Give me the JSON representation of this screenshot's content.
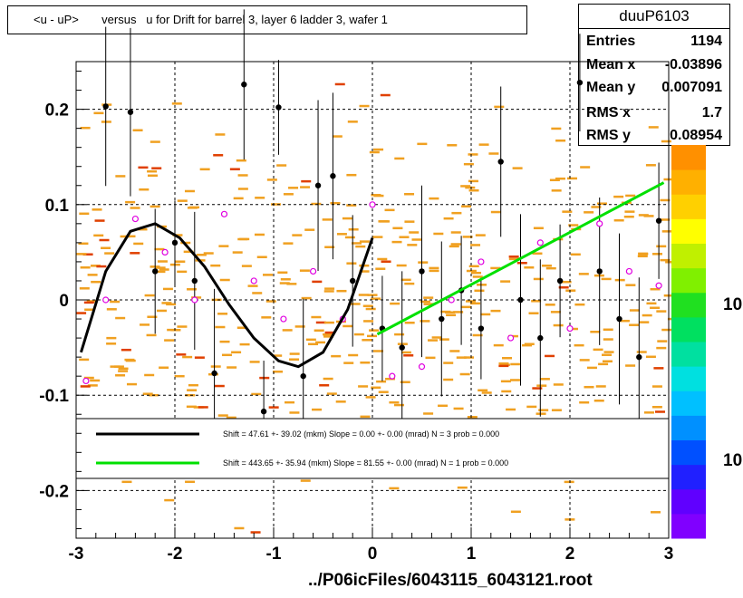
{
  "title": "<u - uP>       versus   u for Drift for barrel 3, layer 6 ladder 3, wafer 1",
  "stats": {
    "name": "duuP6103",
    "rows": [
      {
        "label": "Entries",
        "value": "1194"
      },
      {
        "label": "Mean x",
        "value": "-0.03896"
      },
      {
        "label": "Mean y",
        "value": "0.007091"
      },
      {
        "label": "RMS x",
        "value": "1.7"
      },
      {
        "label": "RMS y",
        "value": "0.08954"
      }
    ]
  },
  "footer": "../P06icFiles/6043115_6043121.root",
  "legend": [
    {
      "color": "#000000",
      "text": "Shift =    47.61 +- 39.02 (mkm) Slope =     0.00 +- 0.00 (mrad)  N = 3 prob = 0.000"
    },
    {
      "color": "#00e000",
      "text": "Shift =   443.65 +- 35.94 (mkm) Slope =    81.55 +- 0.00 (mrad)  N = 1 prob = 0.000"
    }
  ],
  "colorbar": {
    "labels": [
      "10",
      "10"
    ]
  },
  "chart_data": {
    "type": "scatter",
    "title": "<u - uP>       versus   u for Drift for barrel 3, layer 6 ladder 3, wafer 1",
    "xlim": [
      -3,
      3
    ],
    "ylim": [
      -0.25,
      0.25
    ],
    "x_ticks": [
      "-3",
      "-2",
      "-1",
      "0",
      "1",
      "2",
      "3"
    ],
    "y_ticks": [
      "-0.2",
      "-0.1",
      "0",
      "0.1",
      "0.2"
    ],
    "grid": true,
    "profile_black": [
      {
        "x": -2.7,
        "y": 0.203
      },
      {
        "x": -2.45,
        "y": 0.197
      },
      {
        "x": -2.2,
        "y": 0.03
      },
      {
        "x": -2.0,
        "y": 0.06
      },
      {
        "x": -1.8,
        "y": 0.02
      },
      {
        "x": -1.6,
        "y": -0.077
      },
      {
        "x": -1.3,
        "y": 0.226
      },
      {
        "x": -1.1,
        "y": -0.117
      },
      {
        "x": -0.95,
        "y": 0.202
      },
      {
        "x": -0.7,
        "y": -0.08
      },
      {
        "x": -0.55,
        "y": 0.12
      },
      {
        "x": -0.4,
        "y": 0.13
      },
      {
        "x": -0.2,
        "y": 0.02
      },
      {
        "x": 0.1,
        "y": -0.03
      },
      {
        "x": 0.3,
        "y": -0.05
      },
      {
        "x": 0.5,
        "y": 0.03
      },
      {
        "x": 0.7,
        "y": -0.02
      },
      {
        "x": 0.9,
        "y": 0.01
      },
      {
        "x": 1.1,
        "y": -0.03
      },
      {
        "x": 1.3,
        "y": 0.145
      },
      {
        "x": 1.5,
        "y": 0.0
      },
      {
        "x": 1.7,
        "y": -0.04
      },
      {
        "x": 1.9,
        "y": 0.02
      },
      {
        "x": 2.1,
        "y": 0.228
      },
      {
        "x": 2.3,
        "y": 0.03
      },
      {
        "x": 2.5,
        "y": -0.02
      },
      {
        "x": 2.7,
        "y": -0.06
      },
      {
        "x": 2.9,
        "y": 0.083
      }
    ],
    "profile_magenta": [
      {
        "x": -2.9,
        "y": -0.085
      },
      {
        "x": -2.7,
        "y": 0.0
      },
      {
        "x": -2.4,
        "y": 0.085
      },
      {
        "x": -2.1,
        "y": 0.05
      },
      {
        "x": -1.8,
        "y": 0.0
      },
      {
        "x": -1.5,
        "y": 0.09
      },
      {
        "x": -1.2,
        "y": 0.02
      },
      {
        "x": -0.9,
        "y": -0.02
      },
      {
        "x": -0.6,
        "y": 0.03
      },
      {
        "x": -0.3,
        "y": -0.02
      },
      {
        "x": 0.0,
        "y": 0.1
      },
      {
        "x": 0.2,
        "y": -0.08
      },
      {
        "x": 0.5,
        "y": -0.07
      },
      {
        "x": 0.8,
        "y": 0.0
      },
      {
        "x": 1.1,
        "y": 0.04
      },
      {
        "x": 1.4,
        "y": -0.04
      },
      {
        "x": 1.7,
        "y": 0.06
      },
      {
        "x": 2.0,
        "y": -0.03
      },
      {
        "x": 2.3,
        "y": 0.08
      },
      {
        "x": 2.6,
        "y": 0.03
      },
      {
        "x": 2.9,
        "y": 0.015
      }
    ],
    "fit_black": [
      {
        "x": -2.95,
        "y": -0.055
      },
      {
        "x": -2.7,
        "y": 0.03
      },
      {
        "x": -2.45,
        "y": 0.072
      },
      {
        "x": -2.2,
        "y": 0.08
      },
      {
        "x": -1.95,
        "y": 0.065
      },
      {
        "x": -1.7,
        "y": 0.035
      },
      {
        "x": -1.45,
        "y": -0.005
      },
      {
        "x": -1.2,
        "y": -0.04
      },
      {
        "x": -0.95,
        "y": -0.064
      },
      {
        "x": -0.75,
        "y": -0.07
      },
      {
        "x": -0.5,
        "y": -0.055
      },
      {
        "x": -0.25,
        "y": -0.01
      },
      {
        "x": 0.0,
        "y": 0.065
      }
    ],
    "fit_green": [
      {
        "x": 0.05,
        "y": -0.036
      },
      {
        "x": 2.95,
        "y": 0.123
      }
    ]
  }
}
